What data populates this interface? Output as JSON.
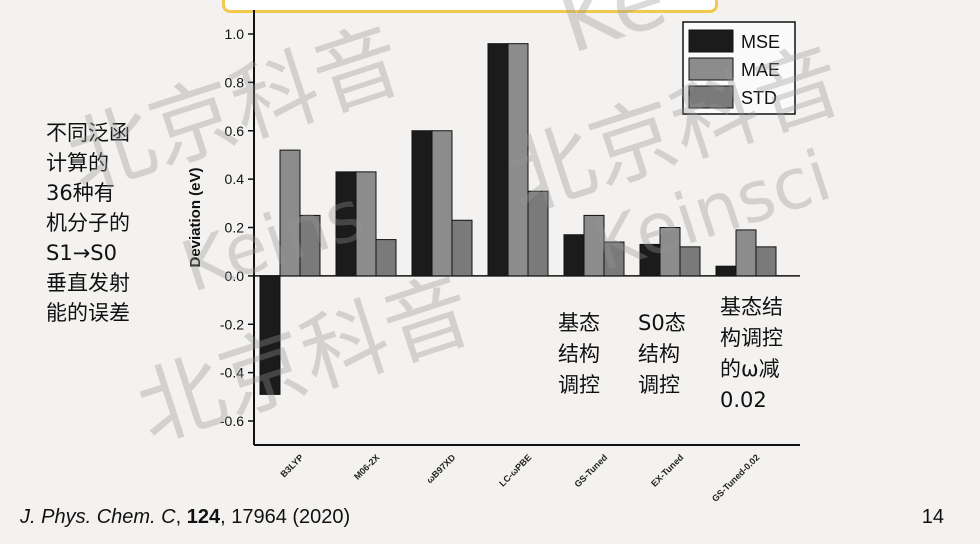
{
  "side_note": [
    "不同泛函",
    "计算的",
    "36种有",
    "机分子的",
    "S1→S0",
    "垂直发射",
    "能的误差"
  ],
  "annotations": [
    {
      "lines": [
        "基态",
        "结构",
        "调控"
      ]
    },
    {
      "lines": [
        "S0态",
        "结构",
        "调控"
      ]
    },
    {
      "lines": [
        "基态结",
        "构调控",
        "的ω减",
        "0.02"
      ]
    }
  ],
  "citation": {
    "journal": "J. Phys. Chem. C",
    "sep1": ", ",
    "volume": "124",
    "rest": ", 17964 (2020)"
  },
  "slide_number": "14",
  "watermarks": [
    "北京科音",
    "北京科音",
    "北京科音",
    "北京科音",
    "Ke",
    "Keinsci",
    "Keins"
  ],
  "chart_data": {
    "type": "bar",
    "ylabel": "Deviation (eV)",
    "ylim": [
      -0.6,
      1.0
    ],
    "yticks": [
      "1.0",
      "0.8",
      "0.6",
      "0.4",
      "0.2",
      "0.0",
      "-0.2",
      "-0.4",
      "-0.6"
    ],
    "categories": [
      "B3LYP",
      "M06-2X",
      "ωB97XD",
      "LC-ωPBE",
      "GS-Tuned",
      "EX-Tuned",
      "GS-Tuned-0.02"
    ],
    "series": [
      {
        "name": "MSE",
        "color": "#1b1b1b",
        "values": [
          -0.49,
          0.43,
          0.6,
          0.96,
          0.17,
          0.13,
          0.04
        ]
      },
      {
        "name": "MAE",
        "color": "#8c8c8c",
        "values": [
          0.52,
          0.43,
          0.6,
          0.96,
          0.25,
          0.2,
          0.19
        ]
      },
      {
        "name": "STD",
        "color": "#7a7a7a",
        "values": [
          0.25,
          0.15,
          0.23,
          0.35,
          0.14,
          0.12,
          0.12
        ]
      }
    ],
    "legend_position": "top-right"
  }
}
